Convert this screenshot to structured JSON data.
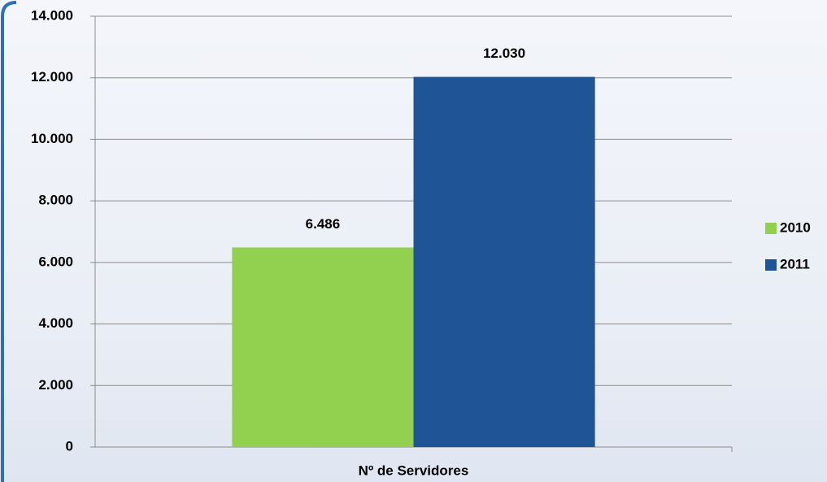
{
  "chart_data": {
    "type": "bar",
    "categories": [
      "Nº de Servidores"
    ],
    "series": [
      {
        "name": "2010",
        "color": "#92d050",
        "values": [
          6486
        ],
        "value_labels": [
          "6.486"
        ]
      },
      {
        "name": "2011",
        "color": "#1f5597",
        "values": [
          12030
        ],
        "value_labels": [
          "12.030"
        ]
      }
    ],
    "ylim": [
      0,
      14000
    ],
    "yticks": [
      0,
      {
        "value": 2000,
        "label": "2.000"
      },
      {
        "value": 4000,
        "label": "4.000"
      },
      {
        "value": 6000,
        "label": "6.000"
      },
      {
        "value": 8000,
        "label": "8.000"
      },
      {
        "value": 10000,
        "label": "10.000"
      },
      {
        "value": 12000,
        "label": "12.000"
      },
      {
        "value": 14000,
        "label": "14.000"
      }
    ],
    "grid": true,
    "legend": "right"
  }
}
